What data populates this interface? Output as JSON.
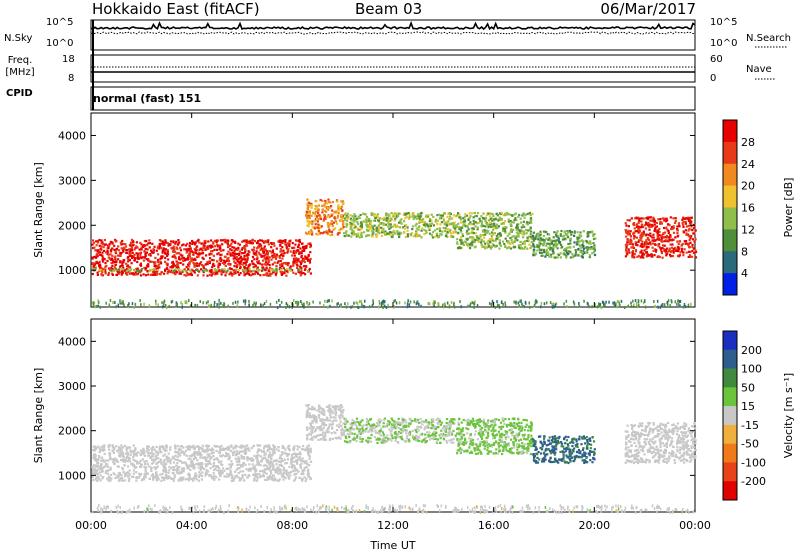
{
  "header": {
    "title": "Hokkaido East (fitACF)",
    "beam": "Beam 03",
    "date": "06/Mar/2017"
  },
  "top_panels": {
    "nsky_label": "N.Sky",
    "nsearch_label": "N.Search",
    "noise_ticks": [
      "10^5",
      "10^0"
    ],
    "freq_label_1": "Freq.",
    "freq_label_2": "[MHz]",
    "freq_ticks": [
      "18",
      "8"
    ],
    "nave_label": "Nave",
    "nave_ticks": [
      "60",
      "0"
    ],
    "cpid_label": "CPID",
    "cpid_text": "normal (fast) 151"
  },
  "colors": {
    "power_scale": [
      "#0020e6",
      "#2a6a7a",
      "#4f8f3a",
      "#8fbf4a",
      "#f0c230",
      "#f08a20",
      "#e83a18",
      "#e60000"
    ],
    "velocity_scale": [
      "#1a2fbf",
      "#2d5e8e",
      "#3f8a3f",
      "#6cc43c",
      "#c8c8c8",
      "#f0b040",
      "#f07a1a",
      "#e84218",
      "#e00000"
    ]
  },
  "chart_data": [
    {
      "type": "heatmap",
      "name": "Power",
      "xlabel": "Time UT",
      "ylabel": "Slant Range [km]",
      "x_ticks": [
        "00:00",
        "04:00",
        "08:00",
        "12:00",
        "16:00",
        "20:00",
        "00:00"
      ],
      "x_range_hours": [
        0,
        24
      ],
      "y_ticks": [
        1000,
        2000,
        3000,
        4000
      ],
      "y_range_km": [
        180,
        4500
      ],
      "colorbar_label": "Power [dB]",
      "colorbar_ticks": [
        4,
        8,
        12,
        16,
        20,
        24,
        28
      ],
      "colorbar_range": [
        0,
        32
      ],
      "regions": [
        {
          "t0": 0.0,
          "t1": 8.7,
          "r0": 900,
          "r1": 1700,
          "value": 29
        },
        {
          "t0": 0.0,
          "t1": 8.7,
          "r0": 1000,
          "r1": 1050,
          "value": 13
        },
        {
          "t0": 8.5,
          "t1": 10.0,
          "r0": 1800,
          "r1": 2600,
          "value": 22
        },
        {
          "t0": 10.0,
          "t1": 14.5,
          "r0": 1750,
          "r1": 2300,
          "value": 14
        },
        {
          "t0": 14.5,
          "t1": 17.5,
          "r0": 1500,
          "r1": 2300,
          "value": 13
        },
        {
          "t0": 17.5,
          "t1": 20.0,
          "r0": 1300,
          "r1": 1900,
          "value": 11
        },
        {
          "t0": 21.2,
          "t1": 24.0,
          "r0": 1300,
          "r1": 2200,
          "value": 28
        }
      ]
    },
    {
      "type": "heatmap",
      "name": "Velocity",
      "xlabel": "Time UT",
      "ylabel": "Slant Range [km]",
      "x_ticks": [
        "00:00",
        "04:00",
        "08:00",
        "12:00",
        "16:00",
        "20:00",
        "00:00"
      ],
      "x_range_hours": [
        0,
        24
      ],
      "y_ticks": [
        1000,
        2000,
        3000,
        4000
      ],
      "y_range_km": [
        180,
        4500
      ],
      "colorbar_label": "Velocity [m s⁻¹]",
      "colorbar_ticks": [
        200,
        100,
        50,
        15,
        -15,
        -50,
        -100,
        -200
      ],
      "colorbar_range": [
        -250,
        250
      ],
      "regions": [
        {
          "t0": 0.0,
          "t1": 8.7,
          "r0": 900,
          "r1": 1700,
          "value": 0
        },
        {
          "t0": 8.5,
          "t1": 10.0,
          "r0": 1800,
          "r1": 2600,
          "value": 0
        },
        {
          "t0": 10.0,
          "t1": 14.5,
          "r0": 1750,
          "r1": 2300,
          "value": 30
        },
        {
          "t0": 14.5,
          "t1": 17.5,
          "r0": 1500,
          "r1": 2300,
          "value": 40
        },
        {
          "t0": 17.5,
          "t1": 20.0,
          "r0": 1300,
          "r1": 1900,
          "value": 150
        },
        {
          "t0": 21.2,
          "t1": 24.0,
          "r0": 1300,
          "r1": 2200,
          "value": 0
        }
      ]
    }
  ]
}
